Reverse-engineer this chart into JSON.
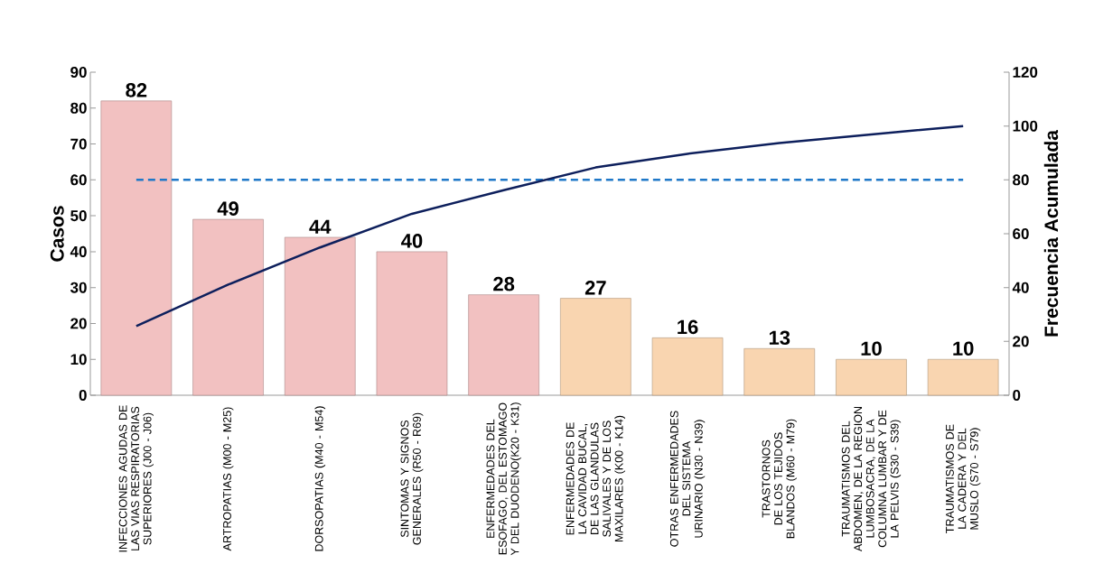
{
  "chart_data": {
    "type": "bar",
    "ylabel": "Casos",
    "y2label": "Frecuencia Acumulada",
    "categories": [
      "INFECCIONES AGUDAS DE LAS VIAS RESPIRATORIAS SUPERIORES (J00 - J06)",
      "ARTROPATIAS (M00 - M25)",
      "DORSOPATIAS (M40 - M54)",
      "SINTOMAS Y SIGNOS GENERALES (R50 - R69)",
      "ENFERMEDADES DEL ESOFAGO, DEL ESTOMAGO Y DEL DUODENO(K20 - K31)",
      "ENFERMEDADES DE LA CAVIDAD BUCAL, DE LAS GLANDULAS SALIVALES Y DE LOS MAXILARES (K00 - K14)",
      "OTRAS ENFERMEDADES DEL SISTEMA URINARIO (N30 - N39)",
      "TRASTORNOS DE LOS TEJIDOS BLANDOS (M60 - M79)",
      "TRAUMATISMOS DEL ABDOMEN, DE LA REGION LUMBOSACRA, DE LA COLUMNA LUMBAR Y DE LA PELVIS (S30 - S39)",
      "TRAUMATISMOS DE LA CADERA Y DEL MUSLO (S70 - S79)"
    ],
    "series": [
      {
        "colors": [
          "#f2c1c1",
          "#f2c1c1",
          "#f2c1c1",
          "#f2c1c1",
          "#f2c1c1",
          "#f9d5b0",
          "#f9d5b0",
          "#f9d5b0",
          "#f9d5b0",
          "#f9d5b0"
        ],
        "values": [
          82,
          49,
          44,
          40,
          28,
          27,
          16,
          13,
          10,
          10
        ],
        "value_labels": [
          "82",
          "49",
          "44",
          "40",
          "28",
          "27",
          "16",
          "13",
          "10",
          "10"
        ]
      },
      {
        "type": "line",
        "axis": "y2",
        "color": "#0d1f5c",
        "values": [
          25.7,
          41.1,
          54.9,
          67.4,
          76.2,
          84.6,
          89.7,
          93.7,
          96.9,
          100
        ]
      }
    ],
    "ylim": [
      0,
      90
    ],
    "yticks": [
      0,
      10,
      20,
      30,
      40,
      50,
      60,
      70,
      80,
      90
    ],
    "y2lim": [
      0,
      120
    ],
    "y2ticks": [
      0,
      20,
      40,
      60,
      80,
      100,
      120
    ],
    "ref_lines": [
      {
        "axis": "y2",
        "value": 80,
        "color": "#1f78c8",
        "line_style": "dashed"
      }
    ],
    "grid": false
  }
}
